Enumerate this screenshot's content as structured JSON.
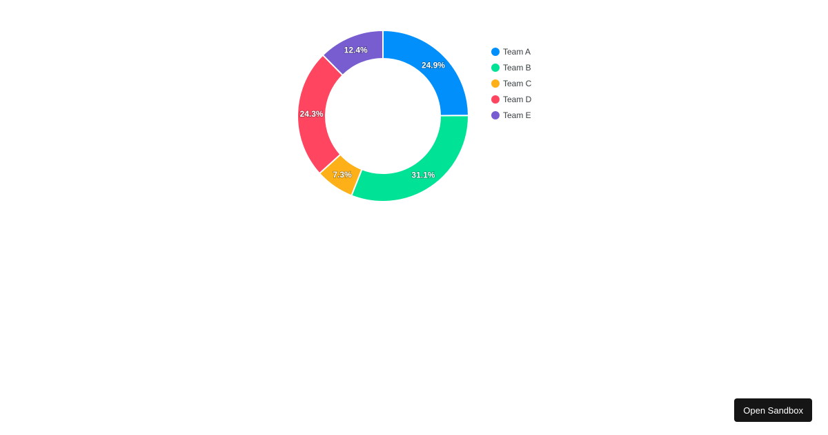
{
  "chart_data": {
    "type": "pie",
    "variant": "donut",
    "categories": [
      "Team A",
      "Team B",
      "Team C",
      "Team D",
      "Team E"
    ],
    "values": [
      24.9,
      31.1,
      7.3,
      24.3,
      12.4
    ],
    "labels": [
      "24.9%",
      "31.1%",
      "7.3%",
      "24.3%",
      "12.4%"
    ],
    "colors": [
      "#008ffb",
      "#00e396",
      "#feb019",
      "#ff4560",
      "#775dd0"
    ],
    "legend": "right",
    "title": ""
  },
  "sandbox_button": {
    "label": "Open Sandbox"
  }
}
